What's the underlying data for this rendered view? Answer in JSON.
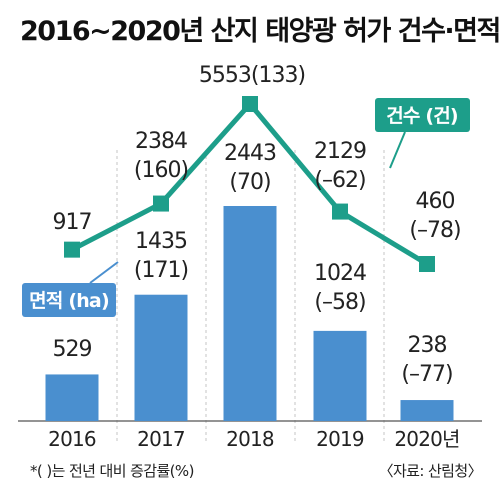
{
  "chart_data": {
    "type": "bar+line",
    "title": "2016~2020년 산지 태양광 허가 건수·면적",
    "categories": [
      "2016",
      "2017",
      "2018",
      "2019",
      "2020년"
    ],
    "bar_series": {
      "name": "면적 (ha)",
      "values": [
        529,
        1435,
        2443,
        1024,
        238
      ],
      "changes": [
        "",
        "(171)",
        "(70)",
        "(–58)",
        "(–77)"
      ]
    },
    "line_series": {
      "name": "건수 (건)",
      "values": [
        917,
        2384,
        5553,
        2129,
        460
      ],
      "changes": [
        "",
        "(160)",
        "(133)",
        "(–62)",
        "(–78)"
      ]
    },
    "grid": true,
    "colors": {
      "bar": "#4a8fcf",
      "line": "#1d9e8a",
      "grid": "#cfcfcf"
    },
    "footnote": "*( )는 전년 대비 증감률(%)",
    "source": "〈자료: 산림청〉"
  }
}
